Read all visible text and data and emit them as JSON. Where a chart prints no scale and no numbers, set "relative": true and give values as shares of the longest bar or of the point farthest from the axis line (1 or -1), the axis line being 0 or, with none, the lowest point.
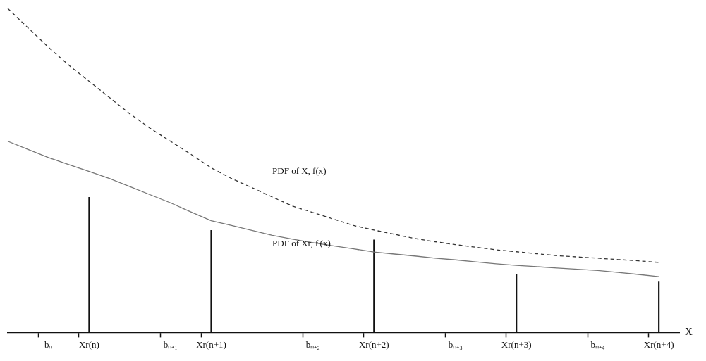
{
  "chart_data": {
    "type": "line",
    "relative": true,
    "xlabel": "X",
    "categories": [
      null,
      null,
      "bₙ",
      null,
      "Xr(n)",
      null,
      null,
      null,
      "bₙ₊₁",
      null,
      "Xr(n+1)",
      null,
      null,
      null,
      null,
      "bₙ₊₂",
      null,
      null,
      "Xr(n+2)",
      null,
      null,
      null,
      "bₙ₊₃",
      null,
      null,
      "Xr(n+3)",
      null,
      null,
      null,
      "bₙ₊₄",
      null,
      null,
      "Xr(n+4)",
      null
    ],
    "tick_labels": "x",
    "grid": false,
    "legend": false,
    "series": [
      {
        "name": "PDF of X, f(x)",
        "type": "line",
        "line_style": "dashed",
        "marker": "none",
        "color": "#333333",
        "values": [
          1.0,
          0.94,
          0.88,
          0.825,
          0.775,
          0.725,
          0.675,
          0.63,
          0.59,
          0.55,
          0.508,
          0.475,
          0.447,
          0.418,
          0.39,
          0.37,
          0.35,
          0.33,
          0.316,
          0.303,
          0.29,
          0.28,
          0.271,
          0.263,
          0.255,
          0.249,
          0.243,
          0.237,
          0.233,
          0.229,
          0.225,
          0.221,
          0.216,
          null
        ]
      },
      {
        "name": "PDF of Xr, f'(x)",
        "type": "line",
        "line_style": "solid",
        "marker": "none",
        "color": "#777777",
        "values": [
          0.59,
          0.565,
          0.54,
          0.518,
          0.497,
          0.475,
          0.45,
          0.425,
          0.4,
          0.372,
          0.345,
          0.33,
          0.315,
          0.3,
          0.288,
          0.277,
          0.267,
          0.258,
          0.248,
          0.242,
          0.236,
          0.229,
          0.224,
          0.218,
          0.212,
          0.207,
          0.203,
          0.199,
          0.195,
          0.191,
          0.185,
          0.179,
          0.172,
          null
        ]
      },
      {
        "type": "bar",
        "color": "#111111",
        "values": [
          null,
          null,
          null,
          null,
          0.417,
          null,
          null,
          null,
          null,
          null,
          0.315,
          null,
          null,
          null,
          null,
          null,
          null,
          null,
          0.286,
          null,
          null,
          null,
          null,
          null,
          null,
          0.179,
          null,
          null,
          null,
          null,
          null,
          null,
          0.156,
          null
        ]
      }
    ]
  }
}
